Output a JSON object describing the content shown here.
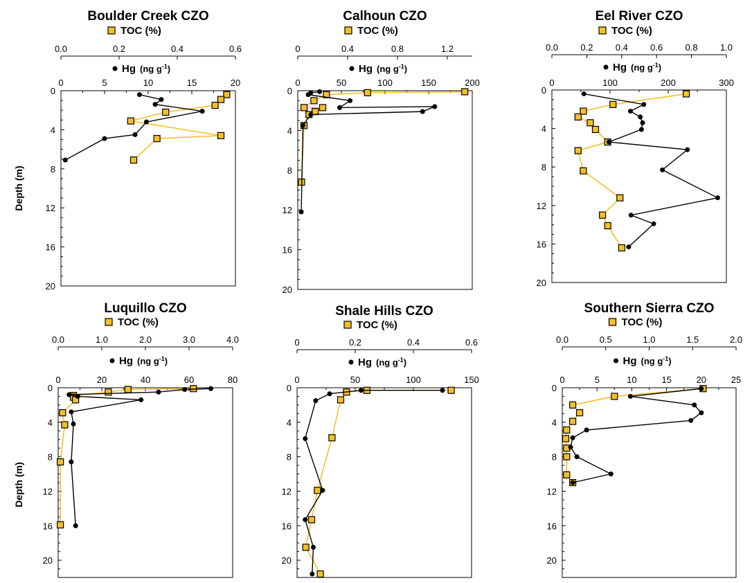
{
  "figure": {
    "ylabel": "Depth (m)"
  },
  "colors": {
    "toc": "#f5bf2a",
    "hg": "#000000"
  },
  "chart_data": [
    {
      "type": "scatter",
      "title": "Boulder Creek CZO",
      "toc_label": "TOC (%)",
      "hg_label": "Hg",
      "hg_unit": "(ng g",
      "hg_unit_sup": "-1",
      "hg_unit_close": ")",
      "toc_ticks": [
        "0.0",
        "0.2",
        "0.4",
        "0.6"
      ],
      "hg_ticks": [
        "0",
        "5",
        "10",
        "15",
        "20"
      ],
      "depth_ticks": [
        "0",
        "4",
        "8",
        "12",
        "16",
        "20"
      ],
      "toc_range": [
        0,
        0.6
      ],
      "hg_range": [
        0,
        20
      ],
      "depth_range": [
        0,
        20
      ],
      "toc_series": [
        [
          0.57,
          0.4
        ],
        [
          0.55,
          0.9
        ],
        [
          0.53,
          1.5
        ],
        [
          0.36,
          2.2
        ],
        [
          0.24,
          3.1
        ],
        [
          0.55,
          4.6
        ],
        [
          0.33,
          4.9
        ],
        [
          0.25,
          7.1
        ]
      ],
      "hg_series": [
        [
          9,
          0.4
        ],
        [
          11.5,
          0.9
        ],
        [
          10.8,
          1.4
        ],
        [
          16.2,
          2.1
        ],
        [
          9.8,
          3.2
        ],
        [
          8.5,
          4.5
        ],
        [
          5,
          4.9
        ],
        [
          0.5,
          7.1
        ]
      ]
    },
    {
      "type": "scatter",
      "title": "Calhoun CZO",
      "toc_label": "TOC (%)",
      "hg_label": "Hg",
      "hg_unit": "(ng g",
      "hg_unit_sup": "-1",
      "hg_unit_close": ")",
      "toc_ticks": [
        "0",
        "0.4",
        "0.8",
        "1.2"
      ],
      "hg_ticks": [
        "0",
        "50",
        "100",
        "150",
        "200"
      ],
      "depth_ticks": [
        "0",
        "4",
        "8",
        "12",
        "16",
        "20"
      ],
      "toc_range": [
        0,
        1.4
      ],
      "hg_range": [
        0,
        200
      ],
      "depth_range": [
        0,
        20
      ],
      "toc_series": [
        [
          1.34,
          0.1
        ],
        [
          0.56,
          0.2
        ],
        [
          0.23,
          0.4
        ],
        [
          0.13,
          1.0
        ],
        [
          0.05,
          1.7
        ],
        [
          0.2,
          1.7
        ],
        [
          0.14,
          2.1
        ],
        [
          0.09,
          2.4
        ],
        [
          0.05,
          3.5
        ],
        [
          0.03,
          9.2
        ]
      ],
      "hg_series": [
        [
          25,
          0.1
        ],
        [
          15,
          0.2
        ],
        [
          12,
          0.4
        ],
        [
          60,
          1.0
        ],
        [
          48,
          1.7
        ],
        [
          157,
          1.6
        ],
        [
          143,
          2.1
        ],
        [
          15,
          2.4
        ],
        [
          6,
          3.5
        ],
        [
          4,
          12.2
        ]
      ]
    },
    {
      "type": "scatter",
      "title": "Eel River CZO",
      "toc_label": "TOC (%)",
      "hg_label": "Hg",
      "hg_unit": "(ng g",
      "hg_unit_sup": "-1",
      "hg_unit_close": ")",
      "toc_ticks": [
        "0.0",
        "0.2",
        "0.4",
        "0.6",
        "0.8",
        "1.0"
      ],
      "hg_ticks": [
        "0",
        "100",
        "200",
        "300"
      ],
      "depth_ticks": [
        "0",
        "4",
        "8",
        "12",
        "16",
        "20"
      ],
      "toc_range": [
        0,
        1.0
      ],
      "hg_range": [
        0,
        300
      ],
      "depth_range": [
        0,
        20
      ],
      "toc_series": [
        [
          0.77,
          0.4
        ],
        [
          0.35,
          1.5
        ],
        [
          0.18,
          2.2
        ],
        [
          0.15,
          2.8
        ],
        [
          0.22,
          3.4
        ],
        [
          0.25,
          4.1
        ],
        [
          0.32,
          5.4
        ],
        [
          0.15,
          6.3
        ],
        [
          0.18,
          8.4
        ],
        [
          0.39,
          11.2
        ],
        [
          0.29,
          13.0
        ],
        [
          0.32,
          14.1
        ],
        [
          0.4,
          16.4
        ]
      ],
      "hg_series": [
        [
          55,
          0.4
        ],
        [
          158,
          1.5
        ],
        [
          135,
          2.2
        ],
        [
          152,
          2.8
        ],
        [
          156,
          3.4
        ],
        [
          154,
          4.1
        ],
        [
          98,
          5.4
        ],
        [
          233,
          6.2
        ],
        [
          190,
          8.3
        ],
        [
          285,
          11.2
        ],
        [
          136,
          13.0
        ],
        [
          175,
          13.9
        ],
        [
          132,
          16.3
        ]
      ]
    },
    {
      "type": "scatter",
      "title": "Luquillo CZO",
      "toc_label": "TOC (%)",
      "hg_label": "Hg",
      "hg_unit": "(ng g",
      "hg_unit_sup": "-1",
      "hg_unit_close": ")",
      "toc_ticks": [
        "0.0",
        "1.0",
        "2.0",
        "3.0",
        "4.0"
      ],
      "hg_ticks": [
        "0",
        "20",
        "40",
        "60",
        "80"
      ],
      "depth_ticks": [
        "0",
        "4",
        "8",
        "12",
        "16",
        "20"
      ],
      "toc_range": [
        0,
        4.0
      ],
      "hg_range": [
        0,
        80
      ],
      "depth_range": [
        0,
        22
      ],
      "toc_series": [
        [
          3.1,
          0.1
        ],
        [
          1.6,
          0.2
        ],
        [
          1.15,
          0.5
        ],
        [
          0.35,
          0.9
        ],
        [
          0.35,
          1.1
        ],
        [
          0.4,
          1.4
        ],
        [
          0.1,
          2.9
        ],
        [
          0.15,
          4.3
        ],
        [
          0.05,
          8.6
        ],
        [
          0.05,
          15.9
        ]
      ],
      "hg_series": [
        [
          70,
          0.1
        ],
        [
          58,
          0.2
        ],
        [
          46,
          0.5
        ],
        [
          5,
          0.8
        ],
        [
          9,
          1.0
        ],
        [
          38,
          1.4
        ],
        [
          6,
          2.8
        ],
        [
          7,
          4.2
        ],
        [
          6,
          8.6
        ],
        [
          8,
          16
        ]
      ]
    },
    {
      "type": "scatter",
      "title": "Shale Hills CZO",
      "toc_label": "TOC (%)",
      "hg_label": "Hg",
      "hg_unit": "(ng g",
      "hg_unit_sup": "-1",
      "hg_unit_close": ")",
      "toc_ticks": [
        "0",
        "0.2",
        "0.4",
        "0.6"
      ],
      "hg_ticks": [
        "0",
        "50",
        "100",
        "150"
      ],
      "depth_ticks": [
        "0",
        "4",
        "8",
        "12",
        "16",
        "20"
      ],
      "toc_range": [
        0,
        0.6
      ],
      "hg_range": [
        0,
        150
      ],
      "depth_range": [
        0,
        22
      ],
      "toc_series": [
        [
          0.53,
          0.3
        ],
        [
          0.24,
          0.3
        ],
        [
          0.17,
          0.5
        ],
        [
          0.15,
          1.4
        ],
        [
          0.12,
          5.8
        ],
        [
          0.07,
          11.9
        ],
        [
          0.05,
          15.3
        ],
        [
          0.03,
          18.5
        ],
        [
          0.08,
          21.6
        ]
      ],
      "hg_series": [
        [
          125,
          0.3
        ],
        [
          55,
          0.3
        ],
        [
          28,
          0.7
        ],
        [
          16,
          1.5
        ],
        [
          7,
          5.9
        ],
        [
          22,
          11.9
        ],
        [
          7,
          15.3
        ],
        [
          14,
          18.5
        ],
        [
          13,
          21.6
        ]
      ]
    },
    {
      "type": "scatter",
      "title": "Southern Sierra CZO",
      "toc_label": "TOC (%)",
      "hg_label": "Hg",
      "hg_unit": "(ng g",
      "hg_unit_sup": "-1",
      "hg_unit_close": ")",
      "toc_ticks": [
        "0.0",
        "0.5",
        "1.0",
        "1.5",
        "2.0"
      ],
      "hg_ticks": [
        "0",
        "5",
        "10",
        "15",
        "20",
        "25"
      ],
      "depth_ticks": [
        "0",
        "4",
        "8",
        "12",
        "16",
        "20"
      ],
      "toc_range": [
        0,
        2.0
      ],
      "hg_range": [
        0,
        25
      ],
      "depth_range": [
        0,
        22
      ],
      "toc_series": [
        [
          1.62,
          0.1
        ],
        [
          0.6,
          1.0
        ],
        [
          0.12,
          2.0
        ],
        [
          0.2,
          2.9
        ],
        [
          0.12,
          3.9
        ],
        [
          0.05,
          4.9
        ],
        [
          0.04,
          5.9
        ],
        [
          0.05,
          7.0
        ],
        [
          0.05,
          8.0
        ],
        [
          0.05,
          10.1
        ],
        [
          0.12,
          11.0
        ]
      ],
      "hg_series": [
        [
          20,
          0.1
        ],
        [
          9.8,
          1.0
        ],
        [
          19,
          2.0
        ],
        [
          20,
          2.9
        ],
        [
          18.5,
          3.8
        ],
        [
          3.5,
          4.9
        ],
        [
          1.5,
          5.8
        ],
        [
          1.2,
          6.9
        ],
        [
          2.1,
          8.0
        ],
        [
          7,
          10
        ],
        [
          1.5,
          11
        ]
      ]
    }
  ]
}
